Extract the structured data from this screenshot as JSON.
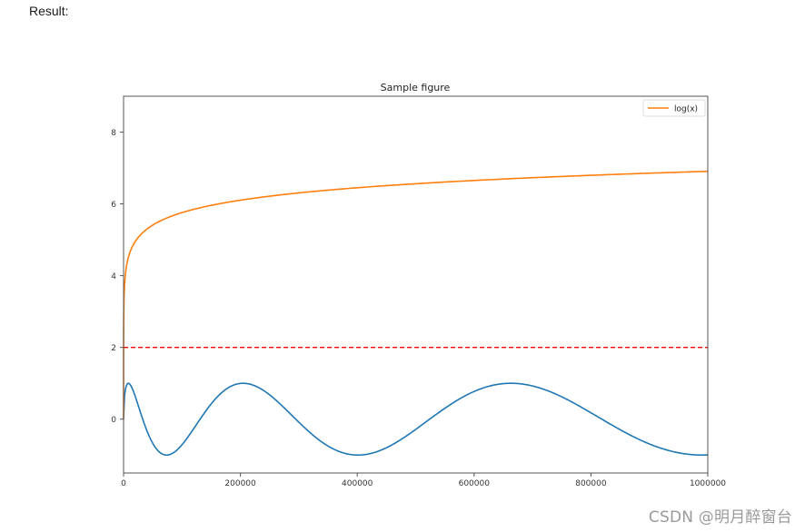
{
  "page": {
    "result_label": "Result:",
    "watermark": "CSDN @明月醉窗台"
  },
  "colors": {
    "blue": "#1f77b4",
    "orange": "#ff7f0e",
    "red": "#ff0000",
    "axis": "#555555"
  },
  "chart_data": {
    "type": "line",
    "title": "Sample figure",
    "xlabel": "",
    "ylabel": "",
    "xlim": [
      0,
      1000000
    ],
    "ylim": [
      -1.5,
      9
    ],
    "grid": false,
    "legend": {
      "position": "upper right",
      "entries": [
        "log(x)"
      ]
    },
    "xticks": [
      0,
      200000,
      400000,
      600000,
      800000,
      1000000
    ],
    "xtick_labels": [
      "0",
      "200000",
      "400000",
      "600000",
      "800000",
      "1000000"
    ],
    "yticks": [
      0,
      2,
      4,
      6,
      8
    ],
    "ytick_labels": [
      "0",
      "2",
      "4",
      "6",
      "8"
    ],
    "series": [
      {
        "name": "sin curve (unlabeled)",
        "color": "#1f77b4",
        "style": "solid",
        "description": "oscillates between -1 and 1; approx sin(sqrt(x)/57.6)",
        "x": [
          0,
          8200,
          70000,
          200000,
          395000,
          655000,
          1000000
        ],
        "y": [
          0,
          1,
          -1,
          1,
          -1,
          1,
          -1
        ]
      },
      {
        "name": "log(x)",
        "color": "#ff7f0e",
        "style": "solid",
        "description": "approx 0.5*ln(x)",
        "x": [
          1000,
          10000,
          50000,
          100000,
          200000,
          400000,
          600000,
          800000,
          1000000
        ],
        "y": [
          3.45,
          4.61,
          5.41,
          5.76,
          6.1,
          6.45,
          6.65,
          6.8,
          6.91
        ]
      },
      {
        "name": "y=2 reference",
        "color": "#ff0000",
        "style": "dashed",
        "x": [
          0,
          1000000
        ],
        "y": [
          2,
          2
        ]
      }
    ]
  }
}
